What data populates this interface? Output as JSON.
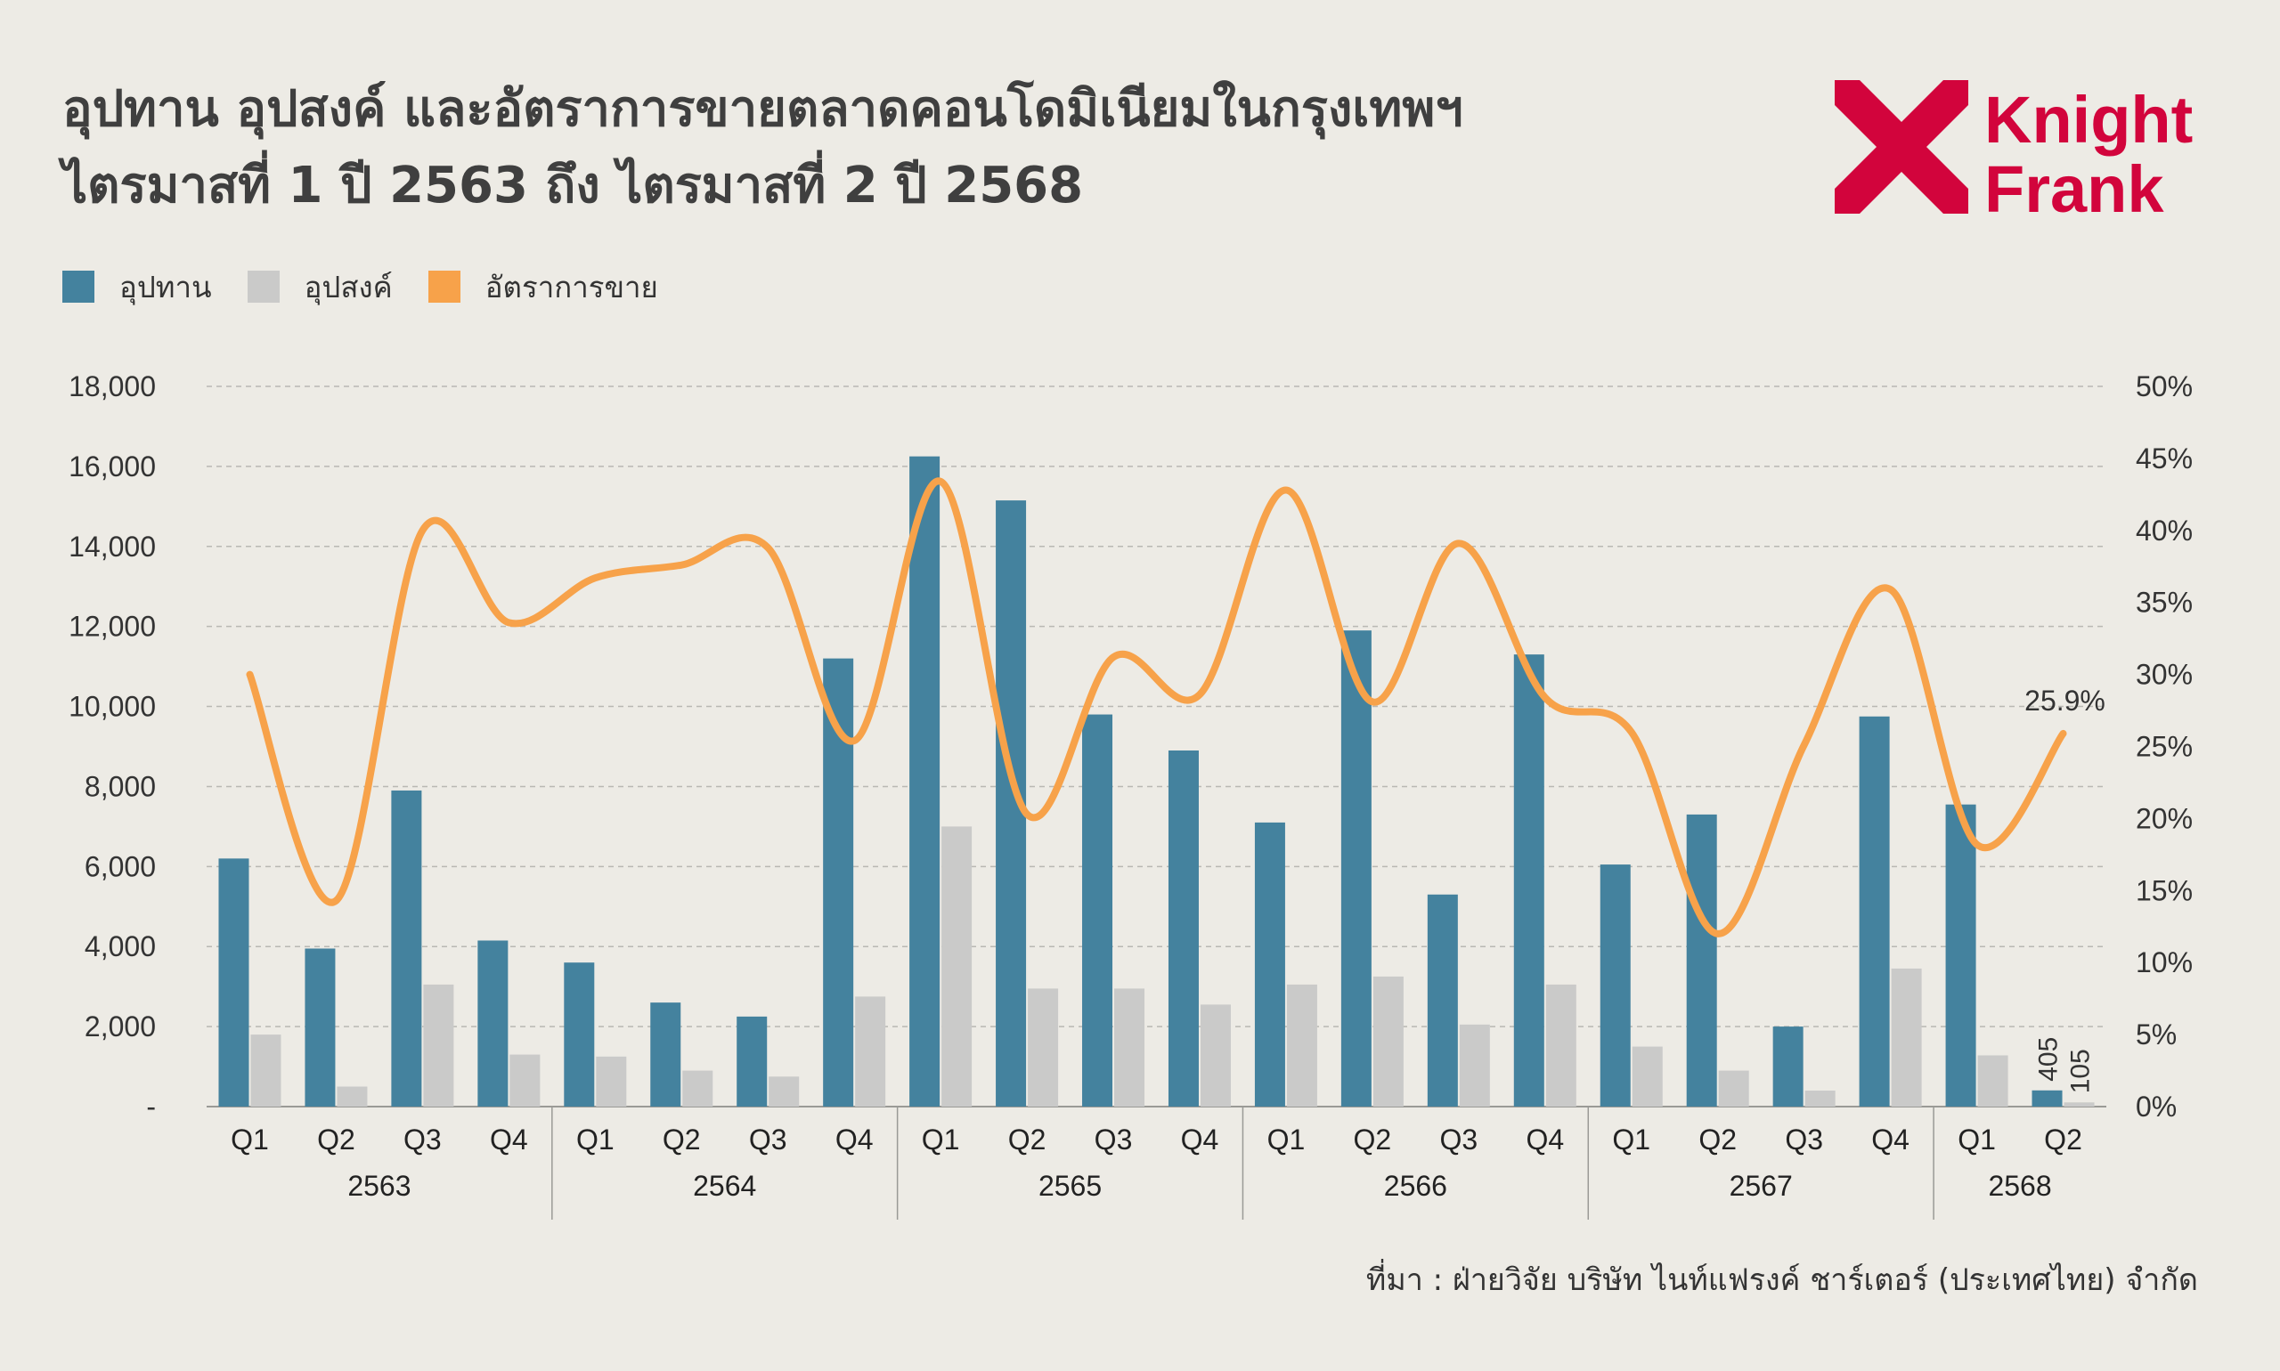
{
  "title": {
    "line1": "อุปทาน อุปสงค์ และอัตราการขายตลาดคอนโดมิเนียมในกรุงเทพฯ",
    "line2": "ไตรมาสที่ 1 ปี 2563 ถึง ไตรมาสที่ 2 ปี 2568"
  },
  "logo": {
    "line1": "Knight",
    "line2": "Frank",
    "color": "#d2043c"
  },
  "source": "ที่มา : ฝ่ายวิจัย บริษัท ไนท์แฟรงค์ ชาร์เตอร์ (ประเทศไทย) จำกัด",
  "chart_data": {
    "type": "bar",
    "legend": [
      {
        "name": "อุปทาน",
        "color": "#44829e"
      },
      {
        "name": "อุปสงค์",
        "color": "#cacac9"
      },
      {
        "name": "อัตราการขาย",
        "color": "#f7a24a"
      }
    ],
    "groups": [
      {
        "year": "2563",
        "quarters": [
          "Q1",
          "Q2",
          "Q3",
          "Q4"
        ]
      },
      {
        "year": "2564",
        "quarters": [
          "Q1",
          "Q2",
          "Q3",
          "Q4"
        ]
      },
      {
        "year": "2565",
        "quarters": [
          "Q1",
          "Q2",
          "Q3",
          "Q4"
        ]
      },
      {
        "year": "2566",
        "quarters": [
          "Q1",
          "Q2",
          "Q3",
          "Q4"
        ]
      },
      {
        "year": "2567",
        "quarters": [
          "Q1",
          "Q2",
          "Q3",
          "Q4"
        ]
      },
      {
        "year": "2568",
        "quarters": [
          "Q1",
          "Q2"
        ]
      }
    ],
    "series": [
      {
        "name": "อุปทาน",
        "type": "bar",
        "axis": "left",
        "values": [
          6200,
          3950,
          7900,
          4150,
          3600,
          2600,
          2250,
          11200,
          16250,
          15150,
          9800,
          8900,
          7100,
          11900,
          5300,
          11300,
          6050,
          7300,
          2000,
          9750,
          7550,
          405
        ]
      },
      {
        "name": "อุปสงค์",
        "type": "bar",
        "axis": "left",
        "values": [
          1800,
          500,
          3050,
          1300,
          1250,
          900,
          750,
          2750,
          7000,
          2950,
          2950,
          2550,
          3050,
          3250,
          2050,
          3050,
          1500,
          900,
          400,
          3450,
          1280,
          105
        ]
      },
      {
        "name": "อัตราการขาย",
        "type": "line",
        "axis": "right",
        "unit": "%",
        "values": [
          30.0,
          14.3,
          40.0,
          33.6,
          36.7,
          37.6,
          38.8,
          25.4,
          43.4,
          20.3,
          31.2,
          28.6,
          42.8,
          28.1,
          39.1,
          28.4,
          26.0,
          12.0,
          25.1,
          35.9,
          18.2,
          25.9
        ]
      }
    ],
    "y_left": {
      "min": 0,
      "max": 18000,
      "ticks": [
        "-",
        "2,000",
        "4,000",
        "6,000",
        "8,000",
        "10,000",
        "12,000",
        "14,000",
        "16,000",
        "18,000"
      ]
    },
    "y_right": {
      "min": 0,
      "max": 50,
      "ticks": [
        "0%",
        "5%",
        "10%",
        "15%",
        "20%",
        "25%",
        "30%",
        "35%",
        "40%",
        "45%",
        "50%"
      ]
    },
    "annotations": {
      "last_rate": "25.9%",
      "last_supply": "405",
      "last_demand": "105"
    },
    "grid": true,
    "legend_position": "top-left"
  }
}
